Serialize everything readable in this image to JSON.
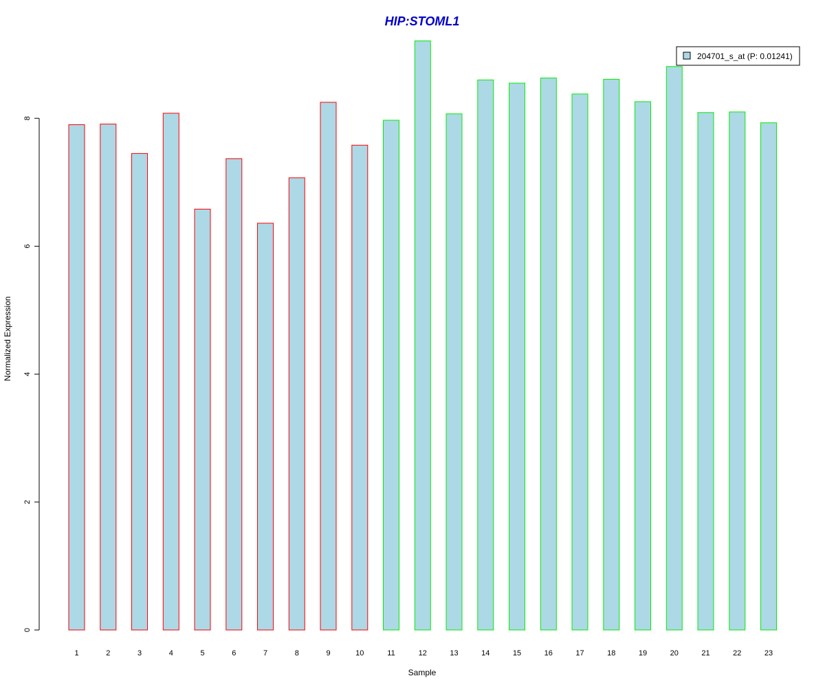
{
  "colors": {
    "title": "#0000cc",
    "bar_fill": "#add8e6",
    "group1_border": "#ff0000",
    "group2_border": "#00ee00",
    "axis": "#000000"
  },
  "chart_data": {
    "type": "bar",
    "title": "HIP:STOML1",
    "xlabel": "Sample",
    "ylabel": "Normalized Expression",
    "ylim": [
      0,
      9.2
    ],
    "yticks": [
      0,
      2,
      4,
      6,
      8
    ],
    "categories": [
      "1",
      "2",
      "3",
      "4",
      "5",
      "6",
      "7",
      "8",
      "9",
      "10",
      "11",
      "12",
      "13",
      "14",
      "15",
      "16",
      "17",
      "18",
      "19",
      "20",
      "21",
      "22",
      "23"
    ],
    "series": [
      {
        "name": "204701_s_at (P: 0.01241)",
        "values": [
          7.9,
          7.91,
          7.45,
          8.08,
          6.58,
          7.37,
          6.36,
          7.07,
          8.25,
          7.58,
          7.97,
          9.21,
          8.07,
          8.6,
          8.55,
          8.63,
          8.38,
          8.61,
          8.26,
          8.81,
          8.09,
          8.1,
          7.93
        ]
      }
    ],
    "groups": [
      "red",
      "red",
      "red",
      "red",
      "red",
      "red",
      "red",
      "red",
      "red",
      "red",
      "green",
      "green",
      "green",
      "green",
      "green",
      "green",
      "green",
      "green",
      "green",
      "green",
      "green",
      "green",
      "green"
    ],
    "legend_position": "top-right",
    "grid": false
  }
}
